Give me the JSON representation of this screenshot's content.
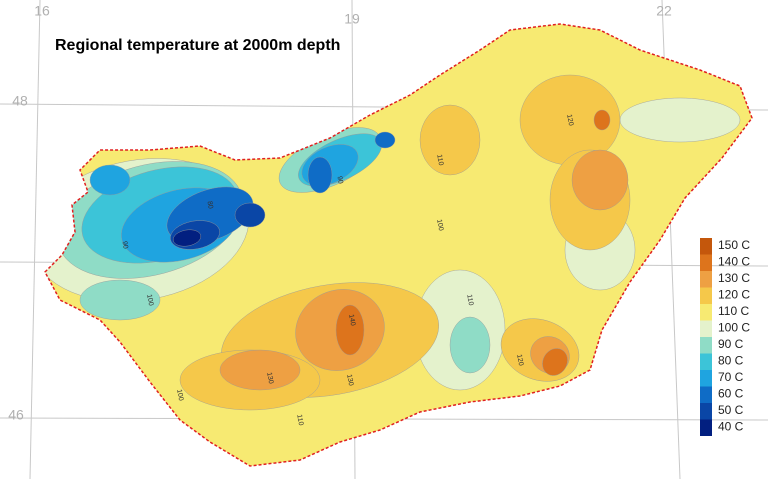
{
  "map": {
    "title": "Regional temperature at 2000m depth",
    "meridians": [
      "16",
      "19",
      "22"
    ],
    "parallels": [
      "48",
      "46"
    ],
    "legend": [
      {
        "label": "150 C",
        "color": "#c4570c"
      },
      {
        "label": "140 C",
        "color": "#dd741c"
      },
      {
        "label": "130 C",
        "color": "#eea043"
      },
      {
        "label": "120 C",
        "color": "#f5c84a"
      },
      {
        "label": "110 C",
        "color": "#f7ea72"
      },
      {
        "label": "100 C",
        "color": "#e4f2cc"
      },
      {
        "label": "90 C",
        "color": "#8fdcc6"
      },
      {
        "label": "80 C",
        "color": "#3cc4d8"
      },
      {
        "label": "70 C",
        "color": "#1fa4e0"
      },
      {
        "label": "60 C",
        "color": "#0f6cc6"
      },
      {
        "label": "50 C",
        "color": "#0a46a6"
      },
      {
        "label": "40 C",
        "color": "#021f80"
      }
    ],
    "contour_labels": [
      "110",
      "100",
      "120",
      "130",
      "140",
      "90",
      "80",
      "110",
      "100",
      "120",
      "110",
      "130",
      "90",
      "100"
    ]
  }
}
